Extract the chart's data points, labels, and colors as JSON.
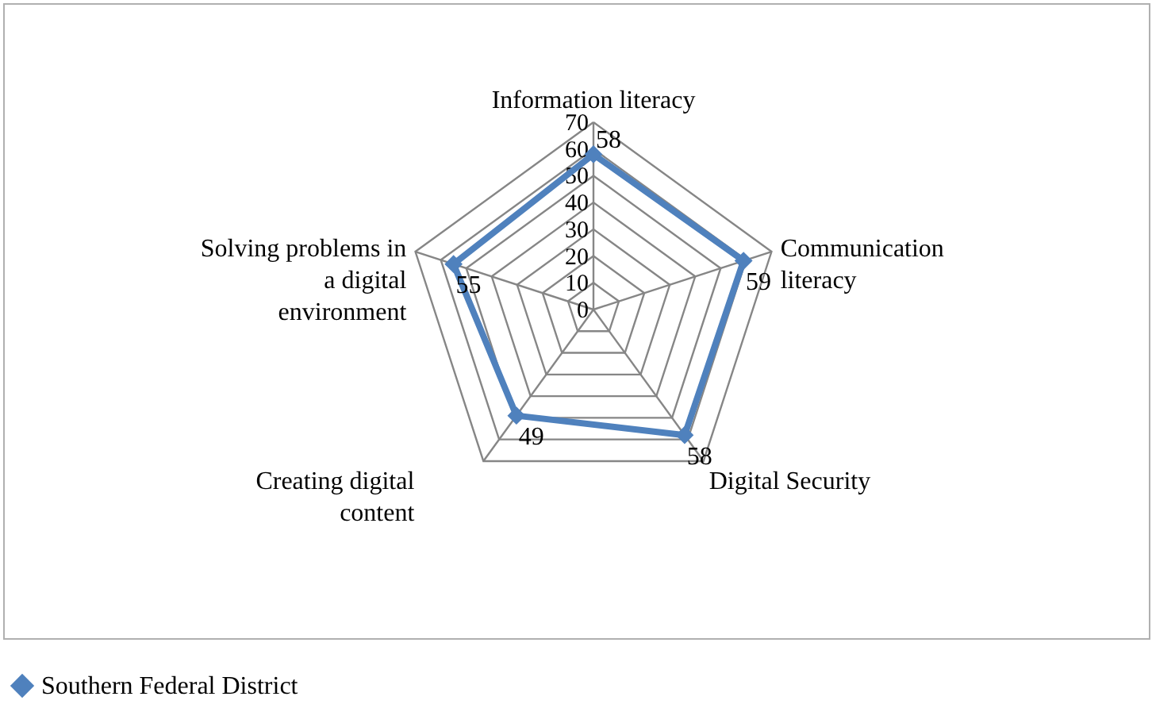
{
  "chart_data": {
    "type": "radar",
    "categories": [
      "Information literacy",
      "Communication literacy",
      "Digital Security",
      "Creating digital content",
      "Solving problems in a digital environment"
    ],
    "series": [
      {
        "name": "Southern Federal District",
        "color": "#4f81bd",
        "values": [
          58,
          59,
          58,
          49,
          55
        ]
      }
    ],
    "ylim": [
      0,
      70
    ],
    "yticks": [
      0,
      10,
      20,
      30,
      40,
      50,
      60,
      70
    ],
    "grid": true,
    "legend": "bottom",
    "marker": "diamond",
    "data_labels": true
  }
}
